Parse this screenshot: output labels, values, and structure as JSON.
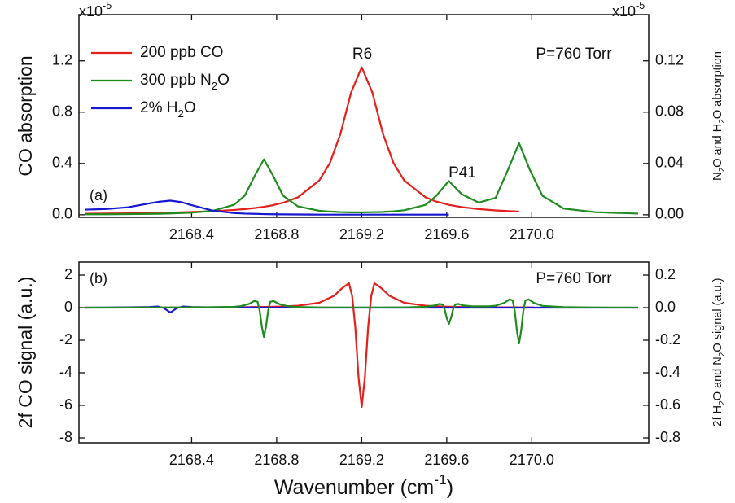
{
  "chart_data": [
    {
      "type": "line",
      "panel_label": "(a)",
      "annotations": [
        "R6",
        "P41",
        "P=760 Torr"
      ],
      "ylabel": [
        {
          "text": "CO absorption"
        }
      ],
      "y2label": [
        {
          "text": "N"
        },
        {
          "text": "2",
          "sub": true
        },
        {
          "text": "O and H"
        },
        {
          "text": "2",
          "sub": true
        },
        {
          "text": "O absorption"
        }
      ],
      "yscale_label": [
        {
          "text": "x10"
        },
        {
          "text": "-5",
          "sup": true
        }
      ],
      "y2scale_label": [
        {
          "text": "x10"
        },
        {
          "text": "-5",
          "sup": true
        }
      ],
      "x": [
        2167.9,
        2168.0,
        2168.1,
        2168.2,
        2168.25,
        2168.3,
        2168.35,
        2168.4,
        2168.5,
        2168.6,
        2168.65,
        2168.7,
        2168.74,
        2168.78,
        2168.83,
        2168.9,
        2169.0,
        2169.05,
        2169.1,
        2169.15,
        2169.2,
        2169.25,
        2169.3,
        2169.35,
        2169.4,
        2169.5,
        2169.55,
        2169.61,
        2169.67,
        2169.75,
        2169.83,
        2169.89,
        2169.94,
        2169.99,
        2170.05,
        2170.15,
        2170.3,
        2170.5
      ],
      "xlim": [
        2167.87,
        2170.55
      ],
      "xticks": [
        2168.4,
        2168.8,
        2169.2,
        2169.6,
        {
          "value": 2170,
          "label": "2170.0"
        }
      ],
      "ylim": [
        -0.02,
        1.56
      ],
      "yticks": [
        {
          "value": 0,
          "label": "0.0"
        },
        0.4,
        0.8,
        1.2
      ],
      "y2lim": [
        -0.002,
        0.156
      ],
      "y2ticks": [
        {
          "value": 0,
          "label": "0.00"
        },
        0.04,
        0.08,
        0.12
      ],
      "legend": "upper left",
      "series": [
        {
          "name": [
            {
              "text": "200 ppb CO"
            }
          ],
          "color": "#e3201b",
          "values": [
            0.008,
            0.0096,
            0.0114,
            0.0138,
            0.0152,
            0.0169,
            0.0189,
            0.0213,
            0.0277,
            0.0374,
            0.0442,
            0.0531,
            0.0622,
            0.0737,
            0.0935,
            0.136,
            0.267,
            0.402,
            0.63,
            0.953,
            1.15,
            0.953,
            0.63,
            0.402,
            0.267,
            0.136,
            0.103,
            0.0772,
            0.0596,
            0.0442,
            0.034,
            0.0285,
            0.0248,
            null,
            null,
            null,
            null,
            null
          ]
        },
        {
          "name": [
            {
              "text": "300 ppb N"
            },
            {
              "text": "2",
              "sub": true
            },
            {
              "text": "O"
            }
          ],
          "color": "#1e8c1e",
          "axis": "y2",
          "values": [
            0.0004,
            0.0004,
            0.0005,
            0.0007,
            0.0008,
            0.001,
            0.0013,
            0.0016,
            0.0031,
            0.0078,
            0.0149,
            0.0314,
            0.0432,
            0.0314,
            0.0149,
            0.0065,
            0.0031,
            0.0025,
            0.0021,
            0.0019,
            0.0019,
            0.002,
            0.0022,
            0.0027,
            0.0035,
            0.0077,
            0.0147,
            0.0263,
            0.0161,
            0.0095,
            0.0132,
            0.0359,
            0.0559,
            0.0353,
            0.0148,
            0.0048,
            0.002,
            0.0009
          ]
        },
        {
          "name": [
            {
              "text": "2% H"
            },
            {
              "text": "2",
              "sub": true
            },
            {
              "text": "O"
            }
          ],
          "color": "#1717d0",
          "axis": "y2",
          "values": [
            0.004,
            0.0045,
            0.0058,
            0.0088,
            0.0102,
            0.011,
            0.0099,
            0.0075,
            0.0032,
            0.0013,
            0.0009,
            0.0007,
            0.0005,
            0.0004,
            0.0003,
            0.0002,
            0.0001,
            0.0001,
            0.0001,
            0.0001,
            0.0001,
            0.0001,
            0.0001,
            0.0001,
            0.0001,
            0.0001,
            0.0001,
            0.0001,
            null,
            null,
            null,
            null,
            null,
            null,
            null,
            null,
            null,
            null
          ]
        }
      ]
    },
    {
      "type": "line",
      "panel_label": "(b)",
      "annotations": [
        "P=760 Torr"
      ],
      "ylabel": [
        {
          "text": "2f CO signal (a.u.)"
        }
      ],
      "y2label": [
        {
          "text": "2f H"
        },
        {
          "text": "2",
          "sub": true
        },
        {
          "text": "O and N"
        },
        {
          "text": "2",
          "sub": true
        },
        {
          "text": "O signal (a.u.)"
        }
      ],
      "xlabel": [
        {
          "text": "Wavenumber (cm"
        },
        {
          "text": "-1",
          "sup": true
        },
        {
          "text": ")"
        }
      ],
      "x": [
        2167.9,
        2168.0,
        2168.1,
        2168.2,
        2168.24,
        2168.27,
        2168.3,
        2168.33,
        2168.36,
        2168.4,
        2168.5,
        2168.6,
        2168.63,
        2168.67,
        2168.695,
        2168.71,
        2168.72,
        2168.73,
        2168.74,
        2168.75,
        2168.76,
        2168.77,
        2168.785,
        2168.81,
        2168.85,
        2168.9,
        2169.0,
        2169.07,
        2169.11,
        2169.14,
        2169.155,
        2169.17,
        2169.185,
        2169.2,
        2169.215,
        2169.23,
        2169.245,
        2169.26,
        2169.29,
        2169.33,
        2169.4,
        2169.5,
        2169.54,
        2169.565,
        2169.58,
        2169.59,
        2169.6,
        2169.61,
        2169.62,
        2169.63,
        2169.64,
        2169.655,
        2169.68,
        2169.72,
        2169.8,
        2169.83,
        2169.87,
        2169.895,
        2169.91,
        2169.92,
        2169.93,
        2169.94,
        2169.95,
        2169.96,
        2169.97,
        2169.985,
        2170.01,
        2170.05,
        2170.15,
        2170.3,
        2170.5
      ],
      "xlim": [
        2167.87,
        2170.55
      ],
      "xticks": [
        2168.4,
        2168.8,
        2169.2,
        2169.6,
        {
          "value": 2170,
          "label": "2170.0"
        }
      ],
      "ylim": [
        -8.3,
        2.8
      ],
      "yticks": [
        2,
        0,
        -2,
        -4,
        -6,
        -8
      ],
      "y2lim": [
        -0.83,
        0.28
      ],
      "y2ticks": [
        0.2,
        {
          "value": 0,
          "label": "0.0"
        },
        -0.2,
        -0.4,
        -0.6,
        -0.8
      ],
      "series": [
        {
          "color": "#e3201b",
          "values": [
            null,
            null,
            null,
            0.006,
            0.006,
            0.007,
            0.009,
            0.009,
            0.01,
            0.011,
            0.018,
            0.025,
            0.028,
            0.033,
            0.036,
            0.038,
            0.04,
            0.042,
            0.045,
            0.047,
            0.05,
            0.052,
            0.056,
            0.065,
            0.09,
            0.12,
            0.3,
            0.73,
            1.22,
            1.5,
            0.73,
            -1.22,
            -4.27,
            -6.1,
            -4.27,
            -1.22,
            0.73,
            1.5,
            1.22,
            0.73,
            0.3,
            0.12,
            0.095,
            0.08,
            0.07,
            0.066,
            0.061,
            0.058,
            0.055,
            0.052,
            0.05,
            0.046,
            0.04,
            0.034,
            0.025,
            0.023,
            0.02,
            0.019,
            0.018,
            0.017,
            0.017,
            0.016,
            0.016,
            0.015,
            0.015,
            0.014,
            0.011,
            null,
            null,
            null,
            null
          ]
        },
        {
          "color": "#1717d0",
          "axis": "y2",
          "values": [
            0,
            0.001,
            0.002,
            0.004,
            0.007,
            -0.003,
            -0.03,
            -0.003,
            0.007,
            0.004,
            0.0015,
            0.0008,
            0.0007,
            0.0006,
            0.0005,
            0.0005,
            0.0005,
            0.0004,
            0.0004,
            0.0004,
            0.0004,
            0.0004,
            0.0004,
            0.0003,
            0.0003,
            0.0002,
            0.0001,
            0,
            0,
            0,
            0,
            0,
            0,
            0,
            0,
            0,
            0,
            0,
            0,
            0,
            0,
            0,
            0,
            0,
            0,
            0,
            0,
            0,
            0,
            0,
            0,
            0,
            0,
            0,
            0,
            0,
            0,
            0,
            0,
            0,
            0,
            0,
            0,
            0,
            0,
            0,
            0,
            0,
            0,
            0,
            0
          ]
        },
        {
          "color": "#1e8c1e",
          "axis": "y2",
          "values": [
            0,
            0,
            0.0005,
            0.0008,
            0.001,
            0.001,
            0.0012,
            0.0013,
            0.0015,
            0.0017,
            0.003,
            0.005,
            0.009,
            0.023,
            0.041,
            0.036,
            -0.018,
            -0.115,
            -0.18,
            -0.115,
            -0.018,
            0.036,
            0.041,
            0.023,
            0.009,
            0.004,
            0.0015,
            0.001,
            0.001,
            0.001,
            0.001,
            0.001,
            0.001,
            0.001,
            0.001,
            0.001,
            0.001,
            0.001,
            0.001,
            0.0012,
            0.0015,
            0.005,
            0.013,
            0.023,
            0.02,
            -0.01,
            -0.064,
            -0.1,
            -0.064,
            -0.01,
            0.02,
            0.023,
            0.013,
            0.008,
            0.008,
            0.012,
            0.029,
            0.051,
            0.044,
            -0.022,
            -0.141,
            -0.22,
            -0.141,
            -0.022,
            0.044,
            0.051,
            0.029,
            0.011,
            0.003,
            0.001,
            0
          ]
        }
      ]
    }
  ]
}
